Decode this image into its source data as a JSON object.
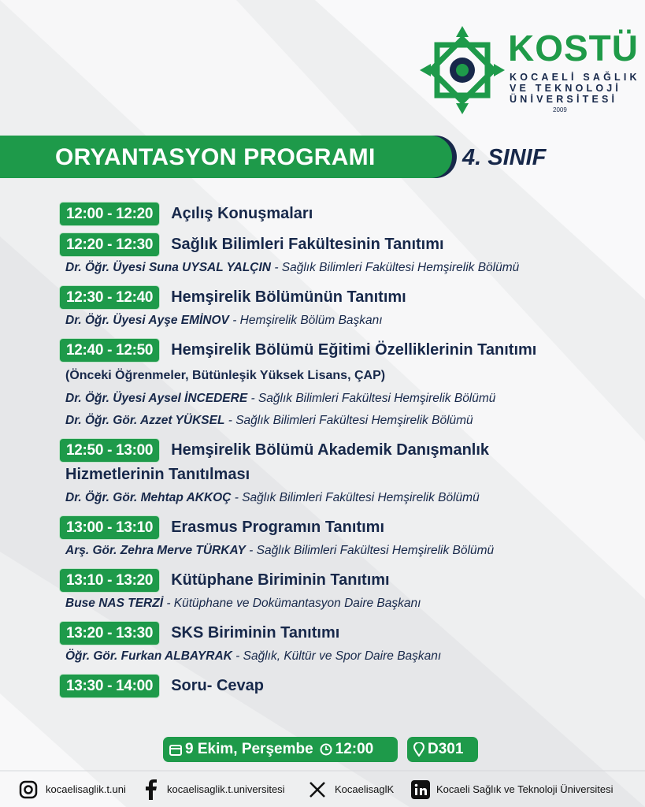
{
  "logo": {
    "name": "KOSTÜ",
    "lines": [
      "KOCAELİ SAĞLIK",
      "VE TEKNOLOJİ",
      "ÜNİVERSİTESİ"
    ],
    "year": "2009"
  },
  "header": {
    "title": "ORYANTASYON PROGRAMI",
    "badge": "4. SINIF"
  },
  "program": [
    {
      "time": "12:00 - 12:20",
      "title": "Açılış Konuşmaları"
    },
    {
      "time": "12:20 - 12:30",
      "title": "Sağlık Bilimleri Fakültesinin Tanıtımı",
      "speakers": [
        {
          "name": "Dr. Öğr. Üyesi Suna UYSAL YALÇIN",
          "role": "- Sağlık Bilimleri Fakültesi Hemşirelik Bölümü"
        }
      ]
    },
    {
      "time": "12:30 - 12:40",
      "title": "Hemşirelik Bölümünün Tanıtımı",
      "speakers": [
        {
          "name": "Dr. Öğr. Üyesi Ayşe EMİNOV",
          "role": "- Hemşirelik Bölüm Başkanı"
        }
      ]
    },
    {
      "time": "12:40 - 12:50",
      "title": "Hemşirelik Bölümü Eğitimi Özelliklerinin Tanıtımı",
      "note": "(Önceki Öğrenmeler, Bütünleşik Yüksek Lisans, ÇAP)",
      "speakers": [
        {
          "name": "Dr. Öğr. Üyesi Aysel İNCEDERE",
          "role": "- Sağlık Bilimleri Fakültesi Hemşirelik Bölümü"
        },
        {
          "name": "Dr. Öğr. Gör. Azzet YÜKSEL",
          "role": "- Sağlık Bilimleri Fakültesi Hemşirelik Bölümü"
        }
      ]
    },
    {
      "time": "12:50 - 13:00",
      "title": "Hemşirelik Bölümü Akademik Danışmanlık Hizmetlerinin Tanıtılması",
      "speakers": [
        {
          "name": "Dr. Öğr. Gör. Mehtap AKKOÇ",
          "role": "- Sağlık Bilimleri Fakültesi Hemşirelik Bölümü"
        }
      ]
    },
    {
      "time": "13:00 - 13:10",
      "title": "Erasmus Programın Tanıtımı",
      "speakers": [
        {
          "name": "Arş. Gör. Zehra Merve TÜRKAY",
          "role": "- Sağlık Bilimleri Fakültesi Hemşirelik Bölümü"
        }
      ]
    },
    {
      "time": "13:10 - 13:20",
      "title": "Kütüphane Biriminin Tanıtımı",
      "speakers": [
        {
          "name": "Buse NAS TERZİ",
          "role": "- Kütüphane ve Dokümantasyon Daire Başkanı"
        }
      ]
    },
    {
      "time": "13:20 - 13:30",
      "title": "SKS Biriminin Tanıtımı",
      "speakers": [
        {
          "name": "Öğr. Gör. Furkan ALBAYRAK",
          "role": "- Sağlık, Kültür ve Spor Daire Başkanı"
        }
      ]
    },
    {
      "time": "13:30 - 14:00",
      "title": "Soru- Cevap"
    }
  ],
  "event": {
    "date": "9 Ekim, Perşembe",
    "time": "12:00",
    "location": "D301"
  },
  "social": {
    "instagram": "kocaelisaglik.t.uni",
    "facebook": "kocaelisaglik.t.universitesi",
    "x": "KocaelisaglK",
    "linkedin": "Kocaeli Sağlık ve Teknoloji Üniversitesi"
  }
}
